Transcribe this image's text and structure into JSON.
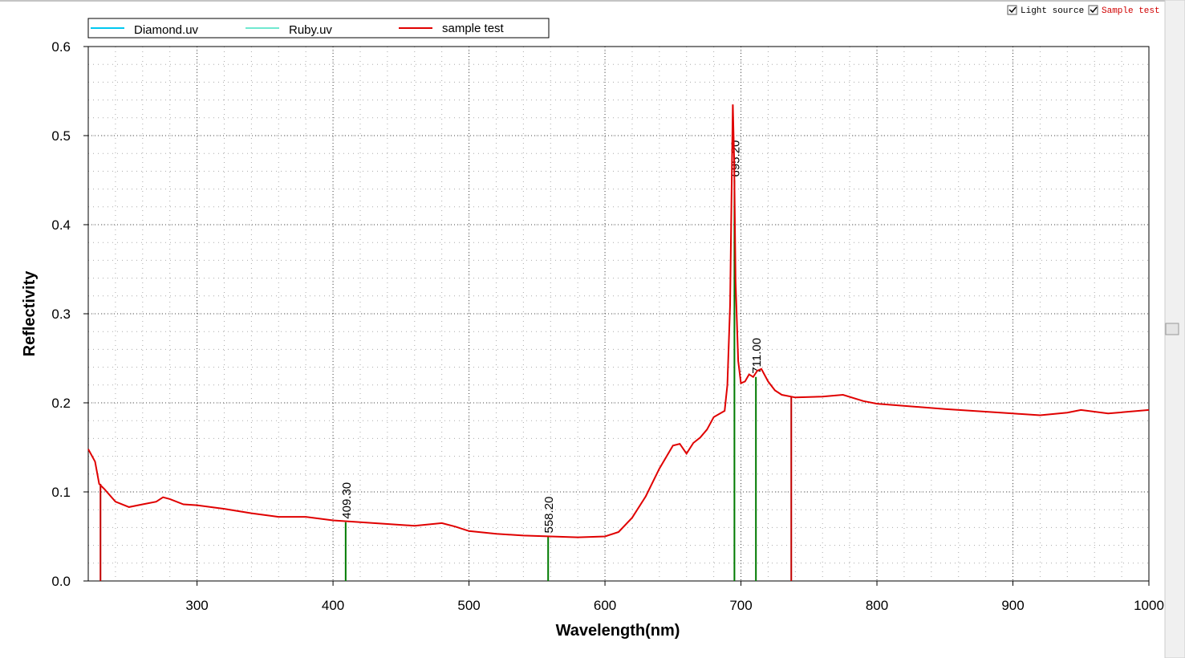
{
  "controls": {
    "light_source": "Light source",
    "sample_test": "Sample test"
  },
  "chart_data": {
    "type": "line",
    "xlabel": "Wavelength(nm)",
    "ylabel": "Reflectivity",
    "xlim": [
      220,
      1000
    ],
    "ylim": [
      0,
      0.6
    ],
    "xticks": [
      300,
      400,
      500,
      600,
      700,
      800,
      900,
      1000
    ],
    "yticks": [
      {
        "value": 0,
        "label": "0.0"
      },
      0.1,
      0.2,
      0.3,
      0.4,
      0.5,
      0.6
    ],
    "grid": true,
    "minor_xstep": 20,
    "minor_ystep": 0.02,
    "series": [
      {
        "name": "Diamond.uv",
        "color": "#00c8f0",
        "x": [],
        "values": []
      },
      {
        "name": "Ruby.uv",
        "color": "#70e8d0",
        "x": [],
        "values": []
      },
      {
        "name": "sample test",
        "color": "#e00000",
        "x": [
          220,
          225,
          228,
          232,
          240,
          250,
          260,
          270,
          275,
          280,
          290,
          300,
          320,
          340,
          360,
          380,
          400,
          420,
          440,
          460,
          480,
          490,
          500,
          520,
          540,
          560,
          580,
          600,
          610,
          620,
          630,
          640,
          650,
          655,
          660,
          665,
          670,
          675,
          680,
          688,
          690,
          692,
          693,
          694,
          695,
          696,
          698,
          700,
          703,
          706,
          709,
          712,
          715,
          720,
          725,
          730,
          740,
          760,
          775,
          790,
          800,
          850,
          900,
          920,
          940,
          950,
          970,
          1000
        ],
        "values": [
          0.148,
          0.134,
          0.109,
          0.103,
          0.089,
          0.083,
          0.086,
          0.089,
          0.094,
          0.092,
          0.086,
          0.085,
          0.081,
          0.076,
          0.072,
          0.072,
          0.068,
          0.066,
          0.064,
          0.062,
          0.065,
          0.061,
          0.056,
          0.053,
          0.051,
          0.05,
          0.049,
          0.05,
          0.055,
          0.071,
          0.095,
          0.126,
          0.152,
          0.154,
          0.143,
          0.155,
          0.161,
          0.17,
          0.184,
          0.191,
          0.22,
          0.31,
          0.427,
          0.535,
          0.472,
          0.337,
          0.247,
          0.222,
          0.224,
          0.232,
          0.229,
          0.236,
          0.238,
          0.224,
          0.214,
          0.209,
          0.206,
          0.207,
          0.209,
          0.202,
          0.199,
          0.193,
          0.188,
          0.186,
          0.189,
          0.192,
          0.188,
          0.192
        ]
      }
    ],
    "markers": [
      {
        "x": 229,
        "y": 0.109,
        "color": "#c00000"
      },
      {
        "x": 409.3,
        "y": 0.066,
        "label": "409.30",
        "color": "#007a00"
      },
      {
        "x": 558.2,
        "y": 0.05,
        "label": "558.20",
        "color": "#007a00"
      },
      {
        "x": 695.2,
        "y": 0.45,
        "label": "695.20",
        "color": "#007a00"
      },
      {
        "x": 711,
        "y": 0.229,
        "label": "711.00",
        "color": "#007a00"
      },
      {
        "x": 737,
        "y": 0.207,
        "color": "#c00000"
      }
    ]
  }
}
